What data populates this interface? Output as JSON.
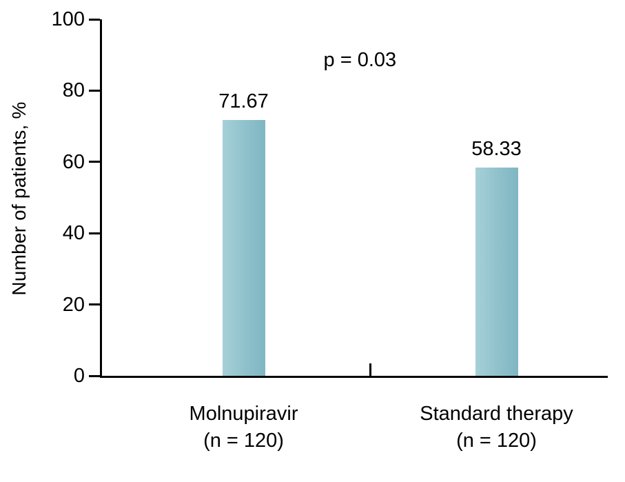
{
  "chart_data": {
    "type": "bar",
    "title": "",
    "categories": [
      "Molnupiravir",
      "Standard therapy"
    ],
    "category_sublabels": [
      "(n = 120)",
      "(n = 120)"
    ],
    "values": [
      71.67,
      58.33
    ],
    "value_labels": [
      "71.67",
      "58.33"
    ],
    "annotation": "p = 0.03",
    "xlabel": "",
    "ylabel": "Number of patients, %",
    "ylim": [
      0,
      100
    ],
    "yticks": [
      0,
      20,
      40,
      60,
      80,
      100
    ],
    "grid": false,
    "legend": false,
    "bar_color": "#8fc1cb",
    "bar_color_light": "#a6d0d8",
    "bar_color_dark": "#7fb6c3",
    "axis_color": "#000000",
    "background_color": "#ffffff"
  }
}
